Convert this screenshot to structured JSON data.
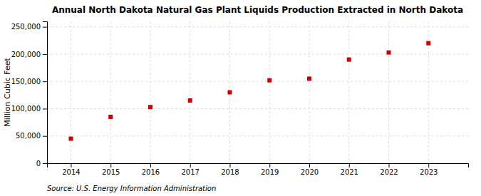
{
  "chart_data": {
    "type": "scatter",
    "title": "Annual North Dakota Natural Gas Plant Liquids Production Extracted in North Dakota",
    "ylabel": "Million Cubic Feet",
    "source": "Source: U.S. Energy Information Administration",
    "x": [
      2014,
      2015,
      2016,
      2017,
      2018,
      2019,
      2020,
      2021,
      2022,
      2023
    ],
    "values": [
      45000,
      85000,
      103000,
      115000,
      130000,
      152000,
      155000,
      190000,
      203000,
      220000
    ],
    "color": "#cc0000",
    "marker": "square",
    "xlim": [
      2013.4,
      2024.0
    ],
    "xticks": [
      2014,
      2015,
      2016,
      2017,
      2018,
      2019,
      2020,
      2021,
      2022,
      2023
    ],
    "ylim": [
      0,
      260000
    ],
    "yticks": [
      0,
      {
        "value": 50000,
        "label": "50,000"
      },
      {
        "value": 100000,
        "label": "100,000"
      },
      {
        "value": 150000,
        "label": "150,000"
      },
      {
        "value": 200000,
        "label": "200,000"
      },
      {
        "value": 250000,
        "label": "250,000"
      }
    ],
    "grid": true
  }
}
